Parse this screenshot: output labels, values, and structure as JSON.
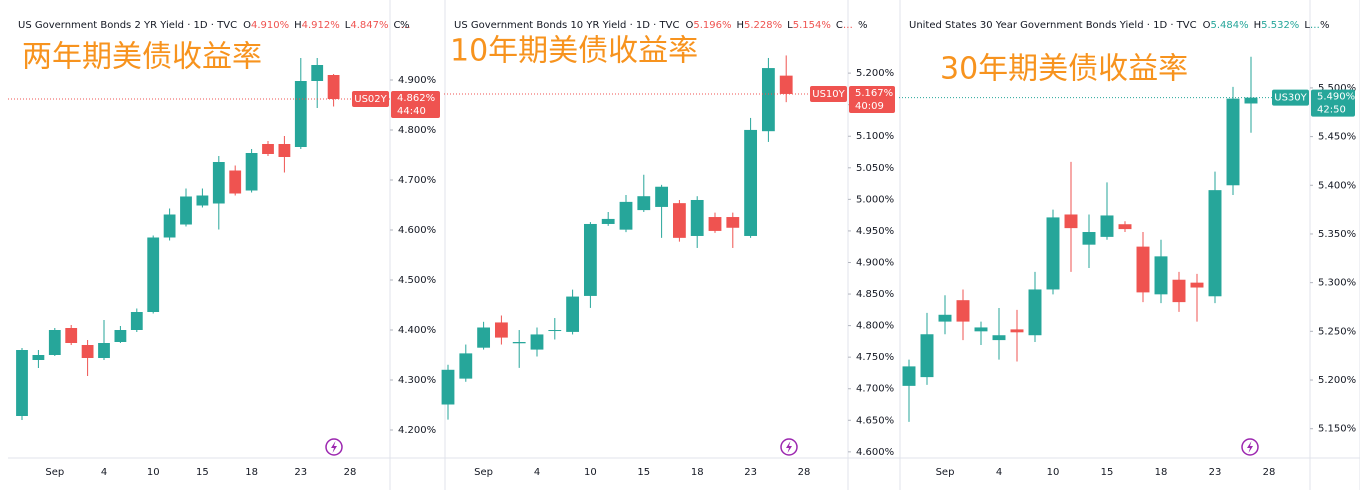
{
  "chart_data": [
    {
      "type": "candlestick",
      "header": "US Government Bonds 2 YR Yield · 1D · TVC",
      "legend_ohlc": [
        {
          "key": "O",
          "label": "4.910%"
        },
        {
          "key": "H",
          "label": "4.912%"
        },
        {
          "key": "L",
          "label": "4.847%"
        },
        {
          "key": "C",
          "label": "…"
        }
      ],
      "annotation": "两年期美债收益率",
      "unit": "%",
      "categories": [
        null,
        null,
        "Sep",
        null,
        null,
        "4",
        null,
        null,
        "10",
        null,
        null,
        "15",
        null,
        null,
        "18",
        null,
        null,
        "23",
        null,
        null,
        "28"
      ],
      "open": [
        4.228,
        4.34,
        4.35,
        4.404,
        4.37,
        4.344,
        4.376,
        4.4,
        4.436,
        4.585,
        4.611,
        4.649,
        4.653,
        4.719,
        4.679,
        4.772,
        4.772,
        4.766,
        4.898,
        4.91,
        null
      ],
      "high": [
        4.364,
        4.36,
        4.404,
        4.41,
        4.38,
        4.42,
        4.408,
        4.443,
        4.589,
        4.643,
        4.683,
        4.683,
        4.748,
        4.729,
        4.762,
        4.778,
        4.788,
        4.944,
        4.944,
        4.912,
        null
      ],
      "low": [
        4.22,
        4.324,
        4.348,
        4.37,
        4.308,
        4.34,
        4.374,
        4.396,
        4.433,
        4.579,
        4.607,
        4.645,
        4.601,
        4.669,
        4.675,
        4.748,
        4.715,
        4.762,
        4.844,
        4.847,
        null
      ],
      "close": [
        4.36,
        4.35,
        4.4,
        4.374,
        4.344,
        4.374,
        4.4,
        4.436,
        4.585,
        4.631,
        4.667,
        4.669,
        4.736,
        4.673,
        4.754,
        4.752,
        4.746,
        4.898,
        4.93,
        4.862,
        null
      ],
      "up_color": "#26a69a",
      "down_color": "#ef5350",
      "ylim": [
        4.15,
        5.04
      ],
      "yticks": [
        {
          "value": 4.2,
          "label": "4.200%"
        },
        {
          "value": 4.3,
          "label": "4.300%"
        },
        {
          "value": 4.4,
          "label": "4.400%"
        },
        {
          "value": 4.5,
          "label": "4.500%"
        },
        {
          "value": 4.6,
          "label": "4.600%"
        },
        {
          "value": 4.7,
          "label": "4.700%"
        },
        {
          "value": 4.8,
          "label": "4.800%"
        },
        {
          "value": 4.9,
          "label": "4.900%"
        }
      ],
      "last_price": {
        "symbol": "US02Y",
        "value": 4.862,
        "label": "4.862%",
        "countdown": "44:40"
      }
    },
    {
      "type": "candlestick",
      "header": "US Government Bonds 10 YR Yield · 1D · TVC",
      "legend_ohlc": [
        {
          "key": "O",
          "label": "5.196%"
        },
        {
          "key": "H",
          "label": "5.228%"
        },
        {
          "key": "L",
          "label": "5.154%"
        },
        {
          "key": "C",
          "label": "…"
        }
      ],
      "annotation": "10年期美债收益率",
      "unit": "%",
      "categories": [
        null,
        null,
        "Sep",
        null,
        null,
        "4",
        null,
        null,
        "10",
        null,
        null,
        "15",
        null,
        null,
        "18",
        null,
        null,
        "23",
        null,
        null,
        "28"
      ],
      "open": [
        4.675,
        4.716,
        4.765,
        4.805,
        4.772,
        4.762,
        4.792,
        4.79,
        4.847,
        4.961,
        4.952,
        4.983,
        4.988,
        4.994,
        4.942,
        4.972,
        4.972,
        4.942,
        5.108,
        5.196,
        null
      ],
      "high": [
        4.738,
        4.77,
        4.806,
        4.816,
        4.793,
        4.797,
        4.812,
        4.857,
        4.964,
        4.98,
        5.007,
        5.039,
        5.023,
        4.999,
        5.005,
        4.979,
        4.979,
        5.129,
        5.224,
        5.228,
        null
      ],
      "low": [
        4.651,
        4.711,
        4.762,
        4.77,
        4.733,
        4.751,
        4.778,
        4.786,
        4.828,
        4.958,
        4.948,
        4.98,
        4.939,
        4.933,
        4.923,
        4.947,
        4.923,
        4.939,
        5.091,
        5.154,
        null
      ],
      "close": [
        4.73,
        4.756,
        4.797,
        4.781,
        4.774,
        4.786,
        4.793,
        4.846,
        4.961,
        4.969,
        4.996,
        5.005,
        5.02,
        4.939,
        4.999,
        4.95,
        4.955,
        5.11,
        5.208,
        5.167,
        null
      ],
      "up_color": "#26a69a",
      "down_color": "#ef5350",
      "ylim": [
        4.595,
        5.3
      ],
      "yticks": [
        {
          "value": 4.6,
          "label": "4.600%"
        },
        {
          "value": 4.65,
          "label": "4.650%"
        },
        {
          "value": 4.7,
          "label": "4.700%"
        },
        {
          "value": 4.75,
          "label": "4.750%"
        },
        {
          "value": 4.8,
          "label": "4.800%"
        },
        {
          "value": 4.85,
          "label": "4.850%"
        },
        {
          "value": 4.9,
          "label": "4.900%"
        },
        {
          "value": 4.95,
          "label": "4.950%"
        },
        {
          "value": 5.0,
          "label": "5.000%"
        },
        {
          "value": 5.05,
          "label": "5.050%"
        },
        {
          "value": 5.1,
          "label": "5.100%"
        },
        {
          "value": 5.15,
          "label": "5.150%"
        },
        {
          "value": 5.2,
          "label": "5.200%"
        }
      ],
      "last_price": {
        "symbol": "US10Y",
        "value": 5.167,
        "label": "5.167%",
        "countdown": "40:09"
      }
    },
    {
      "type": "candlestick",
      "header": "United States 30 Year Government Bonds Yield · 1D · TVC",
      "legend_ohlc": [
        {
          "key": "O",
          "label": "5.484%"
        },
        {
          "key": "H",
          "label": "5.532%"
        },
        {
          "key": "L",
          "label": "…"
        }
      ],
      "annotation": "30年期美债收益率",
      "unit": "%",
      "categories": [
        null,
        null,
        "Sep",
        null,
        null,
        "4",
        null,
        null,
        "10",
        null,
        null,
        "15",
        null,
        null,
        "18",
        null,
        null,
        "23",
        null,
        null,
        "28"
      ],
      "open": [
        5.194,
        5.203,
        5.26,
        5.282,
        5.25,
        5.241,
        5.252,
        5.246,
        5.293,
        5.37,
        5.339,
        5.347,
        5.36,
        5.337,
        5.288,
        5.303,
        5.3,
        5.286,
        5.4,
        5.484,
        null
      ],
      "high": [
        5.221,
        5.269,
        5.287,
        5.293,
        5.26,
        5.274,
        5.272,
        5.311,
        5.375,
        5.424,
        5.37,
        5.403,
        5.363,
        5.352,
        5.344,
        5.311,
        5.309,
        5.414,
        5.501,
        5.532,
        null
      ],
      "low": [
        5.157,
        5.195,
        5.247,
        5.241,
        5.236,
        5.221,
        5.219,
        5.239,
        5.288,
        5.311,
        5.315,
        5.344,
        5.352,
        5.28,
        5.279,
        5.27,
        5.26,
        5.279,
        5.39,
        5.454,
        null
      ],
      "close": [
        5.214,
        5.247,
        5.267,
        5.26,
        5.254,
        5.246,
        5.249,
        5.293,
        5.367,
        5.356,
        5.352,
        5.369,
        5.355,
        5.29,
        5.327,
        5.28,
        5.295,
        5.395,
        5.489,
        5.49,
        null
      ],
      "up_color": "#26a69a",
      "down_color": "#ef5350",
      "ylim": [
        5.123,
        5.58
      ],
      "yticks": [
        {
          "value": 5.15,
          "label": "5.150%"
        },
        {
          "value": 5.2,
          "label": "5.200%"
        },
        {
          "value": 5.25,
          "label": "5.250%"
        },
        {
          "value": 5.3,
          "label": "5.300%"
        },
        {
          "value": 5.35,
          "label": "5.350%"
        },
        {
          "value": 5.4,
          "label": "5.400%"
        },
        {
          "value": 5.45,
          "label": "5.450%"
        },
        {
          "value": 5.5,
          "label": "5.500%"
        }
      ],
      "last_price": {
        "symbol": "US30Y",
        "value": 5.49,
        "label": "5.490%",
        "countdown": "42:50"
      }
    }
  ]
}
